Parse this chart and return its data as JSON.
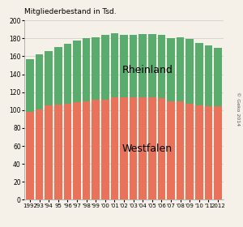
{
  "years": [
    "1992",
    "'93",
    "'94",
    "95",
    "'96",
    "'97",
    "'98",
    "'99",
    "'00",
    "'01",
    "'02",
    "'03",
    "'04",
    "'05",
    "'06",
    "'07",
    "'08",
    "'09",
    "'10",
    "'11",
    "2012"
  ],
  "westfalen": [
    98,
    101,
    105,
    106,
    107,
    109,
    110,
    112,
    112,
    114,
    114,
    114,
    114,
    114,
    113,
    110,
    110,
    107,
    105,
    104,
    104
  ],
  "rheinland": [
    59,
    61,
    61,
    64,
    67,
    69,
    70,
    69,
    72,
    72,
    70,
    70,
    71,
    71,
    71,
    70,
    71,
    72,
    70,
    68,
    65
  ],
  "westfalen_color": "#e8735a",
  "rheinland_color": "#5aab6e",
  "bg_color": "#f5f0e8",
  "grid_color": "#cccccc",
  "ylabel": "Mitgliederbestand in Tsd.",
  "ylim": [
    0,
    200
  ],
  "yticks": [
    0,
    20,
    40,
    60,
    80,
    100,
    120,
    140,
    160,
    180,
    200
  ],
  "label_westfalen": "Westfalen",
  "label_rheinland": "Rheinland",
  "copyright": "© Geko 2014",
  "title_fontsize": 6.5,
  "axis_fontsize": 5.5,
  "label_fontsize": 9
}
